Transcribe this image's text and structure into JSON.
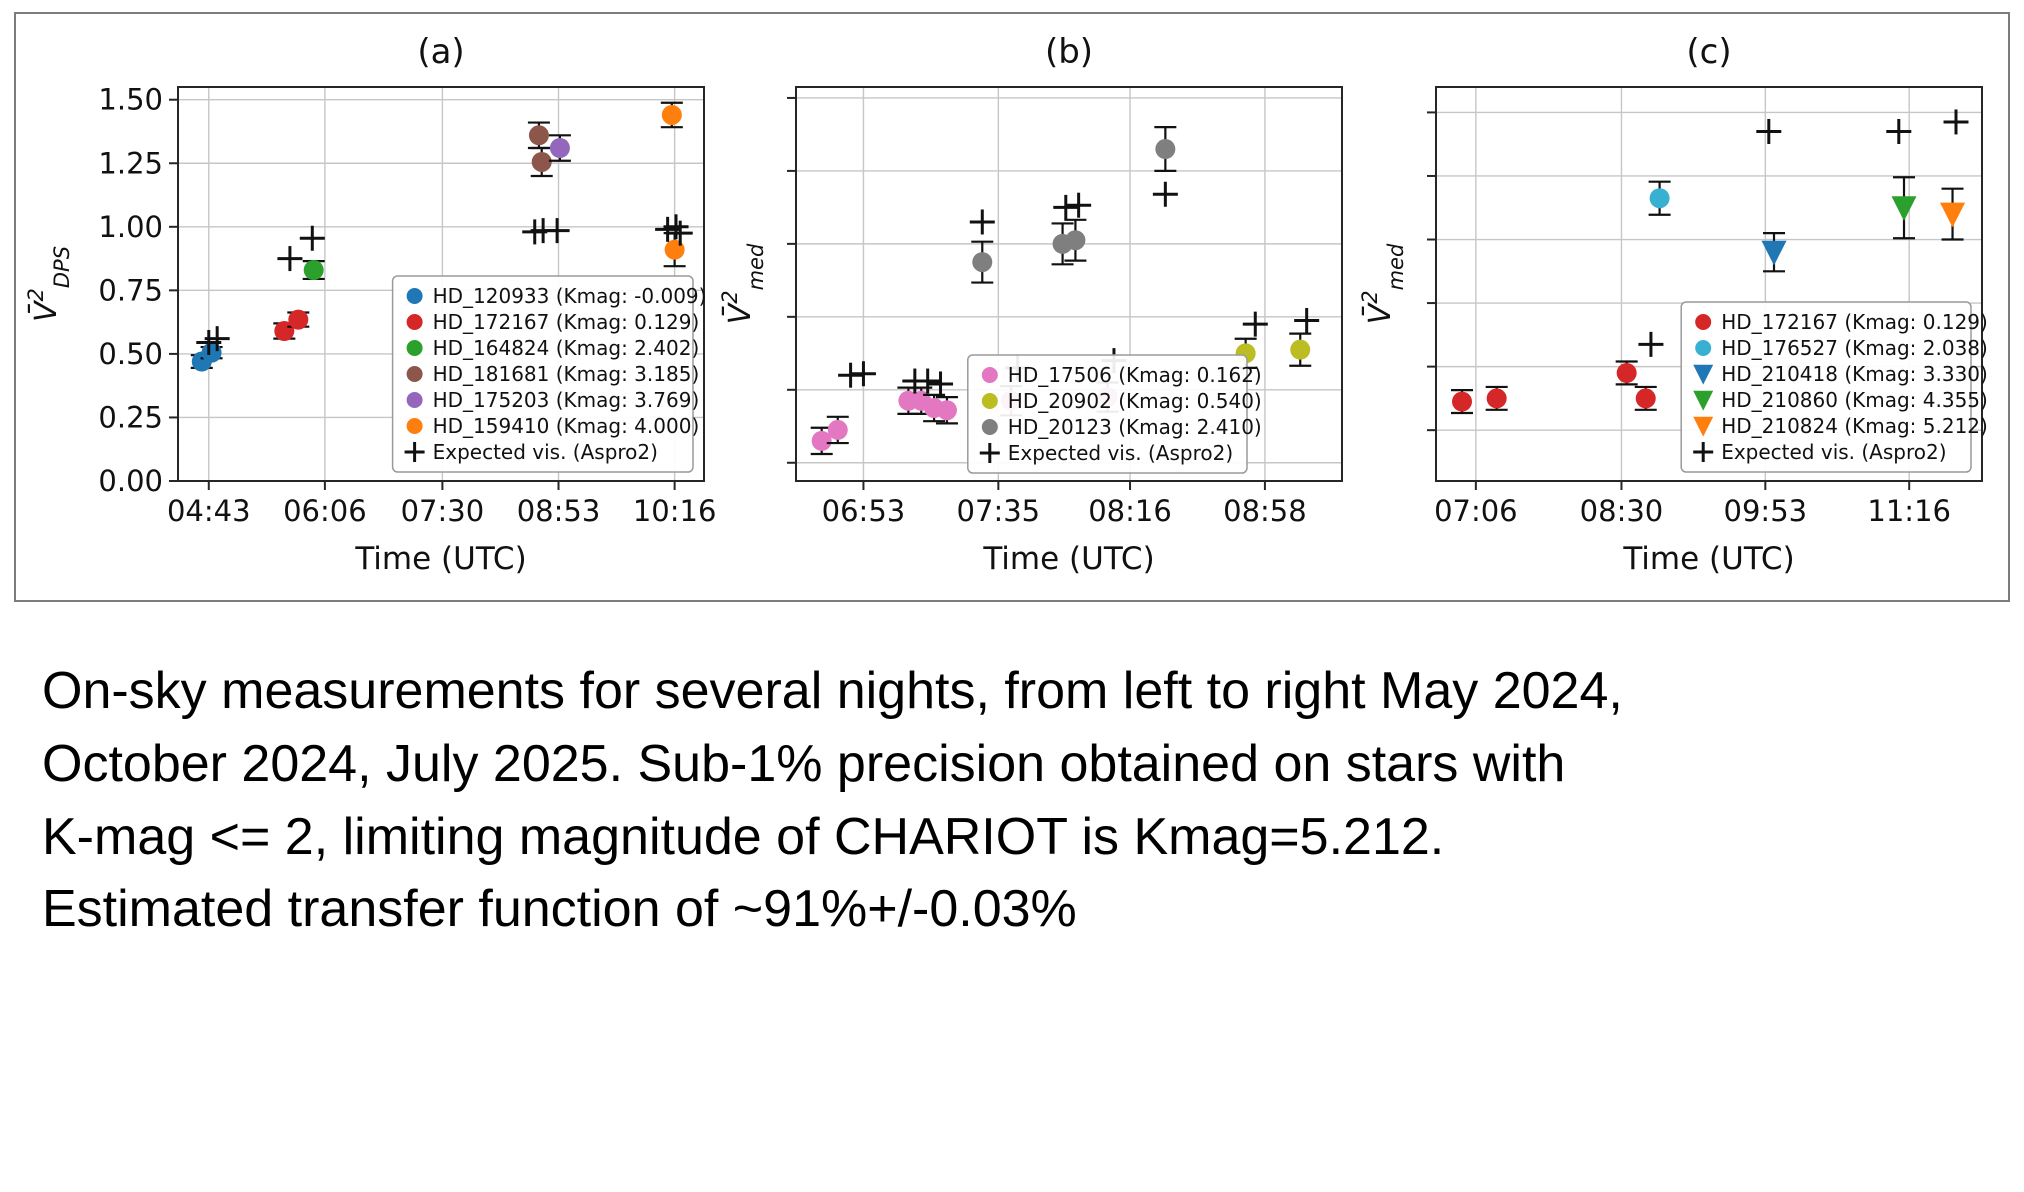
{
  "caption": {
    "lines": [
      "On-sky measurements for several nights, from left to right May 2024,",
      "October 2024, July 2025. Sub-1% precision obtained on stars with",
      "K-mag <= 2, limiting magnitude of CHARIOT is Kmag=5.212.",
      "Estimated transfer function of ~91%+/-0.03%"
    ]
  },
  "chart_data": [
    {
      "type": "scatter",
      "title": "(a)",
      "xlabel": "Time (UTC)",
      "ylabel": {
        "base": "V̄",
        "sup": "2",
        "sub": "DPS"
      },
      "xlim": [
        "04:21",
        "10:37"
      ],
      "ylim": [
        0,
        1.55
      ],
      "xticks": [
        "04:43",
        "06:06",
        "07:30",
        "08:53",
        "10:16"
      ],
      "yticks": [
        0,
        0.25,
        0.5,
        0.75,
        1.0,
        1.25,
        1.5
      ],
      "ytick_labels": [
        "0.00",
        "0.25",
        "0.50",
        "0.75",
        "1.00",
        "1.25",
        "1.50"
      ],
      "show_ytick_labels": true,
      "grid": true,
      "legend_loc": "lower-right",
      "series": [
        {
          "name": "HD_120933 (Kmag: -0.009)",
          "color": "#1f77b4",
          "marker": "circle",
          "points": [
            [
              "04:38",
              0.47,
              0.025
            ],
            [
              "04:45",
              0.505,
              0.022
            ]
          ]
        },
        {
          "name": "HD_172167 (Kmag: 0.129)",
          "color": "#d62728",
          "marker": "circle",
          "points": [
            [
              "05:37",
              0.59,
              0.03
            ],
            [
              "05:47",
              0.635,
              0.028
            ]
          ]
        },
        {
          "name": "HD_164824 (Kmag: 2.402)",
          "color": "#2ca02c",
          "marker": "circle",
          "points": [
            [
              "05:58",
              0.83,
              0.035
            ]
          ]
        },
        {
          "name": "HD_181681 (Kmag: 3.185)",
          "color": "#8c564b",
          "marker": "circle",
          "points": [
            [
              "08:39",
              1.36,
              0.05
            ],
            [
              "08:41",
              1.255,
              0.055
            ]
          ]
        },
        {
          "name": "HD_175203 (Kmag: 3.769)",
          "color": "#9467bd",
          "marker": "circle",
          "points": [
            [
              "08:54",
              1.31,
              0.05
            ]
          ]
        },
        {
          "name": "HD_159410 (Kmag: 4.000)",
          "color": "#ff7f0e",
          "marker": "circle",
          "points": [
            [
              "10:14",
              1.44,
              0.048
            ],
            [
              "10:16",
              0.91,
              0.065
            ]
          ]
        },
        {
          "name": "Expected vis. (Aspro2)",
          "color": "#111111",
          "marker": "plus",
          "points": [
            [
              "04:43",
              0.545,
              0
            ],
            [
              "04:49",
              0.56,
              0
            ],
            [
              "05:41",
              0.875,
              0
            ],
            [
              "05:57",
              0.955,
              0
            ],
            [
              "08:36",
              0.98,
              0
            ],
            [
              "08:42",
              0.985,
              0
            ],
            [
              "08:52",
              0.985,
              0
            ],
            [
              "10:11",
              0.99,
              0
            ],
            [
              "10:17",
              1.0,
              0
            ],
            [
              "10:20",
              0.975,
              0
            ]
          ]
        }
      ]
    },
    {
      "type": "scatter",
      "title": "(b)",
      "xlabel": "Time (UTC)",
      "ylabel": {
        "base": "V̄",
        "sup": "2",
        "sub": "med"
      },
      "xlim": [
        "06:32",
        "09:22"
      ],
      "ylim": [
        0.575,
        1.115
      ],
      "xticks": [
        "06:53",
        "07:35",
        "08:16",
        "08:58"
      ],
      "yticks": [
        0.6,
        0.7,
        0.8,
        0.9,
        1.0,
        1.1
      ],
      "ytick_labels": null,
      "show_ytick_labels": false,
      "grid": true,
      "legend_loc": "lower-center-right",
      "series": [
        {
          "name": "HD_17506 (Kmag: 0.162)",
          "color": "#e377c2",
          "marker": "circle",
          "points": [
            [
              "06:40",
              0.63,
              0.018
            ],
            [
              "06:45",
              0.645,
              0.018
            ],
            [
              "07:07",
              0.685,
              0.018
            ],
            [
              "07:11",
              0.685,
              0.018
            ],
            [
              "07:15",
              0.675,
              0.018
            ],
            [
              "07:19",
              0.672,
              0.018
            ],
            [
              "07:39",
              0.685,
              0.02
            ],
            [
              "08:09",
              0.69,
              0.02
            ]
          ]
        },
        {
          "name": "HD_20902 (Kmag: 0.540)",
          "color": "#bcbd22",
          "marker": "circle",
          "points": [
            [
              "08:52",
              0.75,
              0.02
            ],
            [
              "09:09",
              0.755,
              0.022
            ]
          ]
        },
        {
          "name": "HD_20123 (Kmag: 2.410)",
          "color": "#7f7f7f",
          "marker": "circle",
          "points": [
            [
              "07:30",
              0.875,
              0.028
            ],
            [
              "07:55",
              0.9,
              0.028
            ],
            [
              "07:59",
              0.905,
              0.028
            ],
            [
              "08:27",
              1.03,
              0.03
            ]
          ]
        },
        {
          "name": "Expected vis. (Aspro2)",
          "color": "#111111",
          "marker": "plus",
          "points": [
            [
              "06:49",
              0.72,
              0
            ],
            [
              "06:53",
              0.722,
              0
            ],
            [
              "07:09",
              0.712,
              0
            ],
            [
              "07:13",
              0.712,
              0
            ],
            [
              "07:17",
              0.708,
              0
            ],
            [
              "07:30",
              0.93,
              0
            ],
            [
              "07:41",
              0.73,
              0
            ],
            [
              "07:56",
              0.95,
              0
            ],
            [
              "08:00",
              0.953,
              0
            ],
            [
              "08:11",
              0.74,
              0
            ],
            [
              "08:27",
              0.968,
              0
            ],
            [
              "08:55",
              0.79,
              0
            ],
            [
              "09:11",
              0.795,
              0
            ]
          ]
        }
      ]
    },
    {
      "type": "scatter",
      "title": "(c)",
      "xlabel": "Time (UTC)",
      "ylabel": {
        "base": "V̄",
        "sup": "2",
        "sub": "med"
      },
      "xlim": [
        "06:43",
        "11:58"
      ],
      "ylim": [
        0.42,
        1.04
      ],
      "xticks": [
        "07:06",
        "08:30",
        "09:53",
        "11:16"
      ],
      "yticks": [
        0.5,
        0.6,
        0.7,
        0.8,
        0.9,
        1.0
      ],
      "ytick_labels": null,
      "show_ytick_labels": false,
      "grid": true,
      "legend_loc": "lower-right",
      "series": [
        {
          "name": "HD_172167 (Kmag: 0.129)",
          "color": "#d62728",
          "marker": "circle",
          "points": [
            [
              "06:58",
              0.545,
              0.018
            ],
            [
              "07:18",
              0.55,
              0.018
            ],
            [
              "08:33",
              0.59,
              0.018
            ],
            [
              "08:44",
              0.55,
              0.018
            ]
          ]
        },
        {
          "name": "HD_176527 (Kmag: 2.038)",
          "color": "#38b0d2",
          "marker": "circle",
          "points": [
            [
              "08:52",
              0.865,
              0.026
            ]
          ]
        },
        {
          "name": "HD_210418 (Kmag: 3.330)",
          "color": "#1f77b4",
          "marker": "triangle-down",
          "points": [
            [
              "09:58",
              0.78,
              0.03
            ]
          ]
        },
        {
          "name": "HD_210860 (Kmag: 4.355)",
          "color": "#2ca02c",
          "marker": "triangle-down",
          "points": [
            [
              "11:13",
              0.85,
              0.048
            ]
          ]
        },
        {
          "name": "HD_210824 (Kmag: 5.212)",
          "color": "#ff7f0e",
          "marker": "triangle-down",
          "points": [
            [
              "11:41",
              0.84,
              0.04
            ]
          ]
        },
        {
          "name": "Expected vis. (Aspro2)",
          "color": "#111111",
          "marker": "plus",
          "points": [
            [
              "08:47",
              0.635,
              0
            ],
            [
              "09:55",
              0.97,
              0
            ],
            [
              "11:10",
              0.97,
              0
            ],
            [
              "11:43",
              0.985,
              0
            ]
          ]
        }
      ]
    }
  ]
}
